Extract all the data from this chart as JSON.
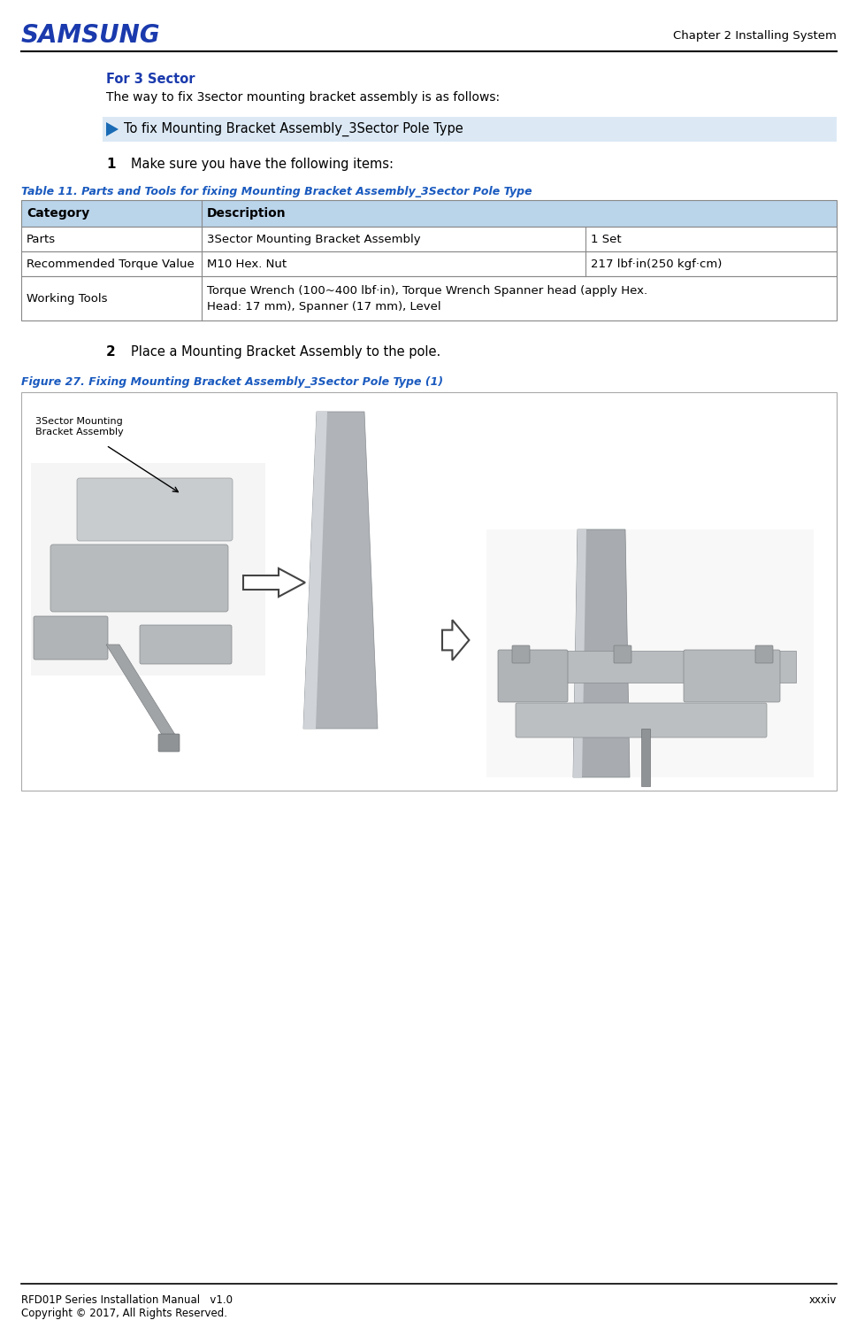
{
  "page_width": 9.5,
  "page_height": 14.69,
  "bg_color": "#ffffff",
  "header": {
    "samsung_text": "SAMSUNG",
    "samsung_color": "#1a3aad",
    "chapter_text": "Chapter 2 Installing System",
    "chapter_color": "#000000",
    "line_color": "#000000"
  },
  "footer": {
    "left_text": "RFD01P Series Installation Manual   v1.0\nCopyright © 2017, All Rights Reserved.",
    "right_text": "xxxiv",
    "line_color": "#000000"
  },
  "section_title": "For 3 Sector",
  "section_title_color": "#1a3aad",
  "section_body": "The way to fix 3sector mounting bracket assembly is as follows:",
  "step_box": {
    "text": "To fix Mounting Bracket Assembly_3Sector Pole Type",
    "bg_color": "#dce9f5",
    "text_color": "#000000",
    "arrow_color": "#1a6bb5"
  },
  "step1_number": "1",
  "step1_text": "Make sure you have the following items:",
  "table_title": "Table 11. Parts and Tools for fixing Mounting Bracket Assembly_3Sector Pole Type",
  "table_title_color": "#1a5abf",
  "table_header_bg": "#bad4ea",
  "table_header_text_color": "#000000",
  "table_col_headers": [
    "Category",
    "Description"
  ],
  "table_rows": [
    [
      "Parts",
      "3Sector Mounting Bracket Assembly",
      "1 Set"
    ],
    [
      "Recommended Torque Value",
      "M10 Hex. Nut",
      "217 lbf·in(250 kgf·cm)"
    ],
    [
      "Working Tools",
      "Torque Wrench (100~400 lbf·in), Torque Wrench Spanner head (apply Hex.\nHead: 17 mm), Spanner (17 mm), Level",
      ""
    ]
  ],
  "table_border_color": "#888888",
  "table_row_bg": "#ffffff",
  "step2_number": "2",
  "step2_text": "Place a Mounting Bracket Assembly to the pole.",
  "figure_title": "Figure 27. Fixing Mounting Bracket Assembly_3Sector Pole Type (1)",
  "figure_title_color": "#1a5abf",
  "figure_bg": "#ffffff",
  "figure_border": "#aaaaaa",
  "figure_label": "3Sector Mounting\nBracket Assembly",
  "figure_label_color": "#000000"
}
